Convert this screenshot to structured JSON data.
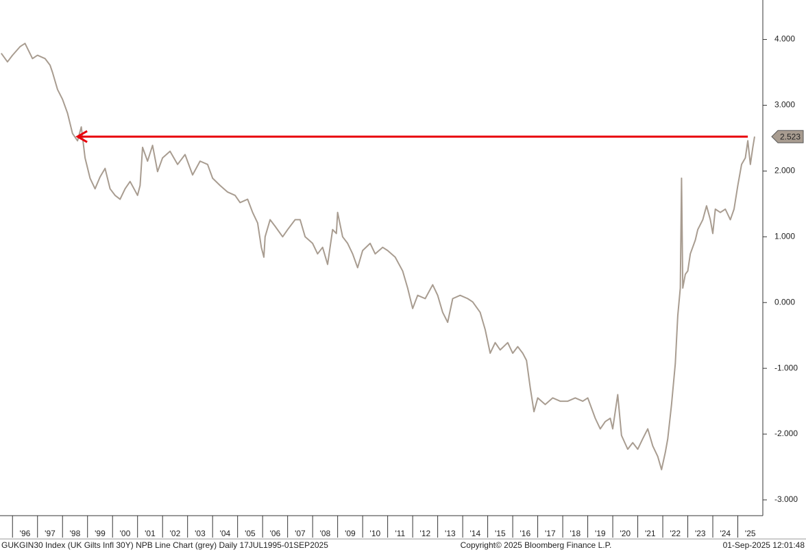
{
  "chart_data": {
    "type": "line",
    "footer_left": "GUKGIN30 Index (UK Gilts Infl 30Y) NPB Line Chart (grey)  Daily 17JUL1995-01SEP2025",
    "footer_center": "Copyright© 2025 Bloomberg Finance L.P.",
    "footer_right": "01-Sep-2025 12:01:48",
    "x": [
      1995.55,
      1995.8,
      1996.0,
      1996.3,
      1996.5,
      1996.8,
      1997.0,
      1997.3,
      1997.5,
      1997.6,
      1997.8,
      1998.0,
      1998.2,
      1998.4,
      1998.6,
      1998.75,
      1998.9,
      1999.1,
      1999.3,
      1999.5,
      1999.7,
      1999.9,
      2000.1,
      2000.3,
      2000.5,
      2000.7,
      2000.9,
      2001.0,
      2001.1,
      2001.2,
      2001.4,
      2001.6,
      2001.8,
      2002.0,
      2002.3,
      2002.6,
      2002.9,
      2003.2,
      2003.5,
      2003.8,
      2004.0,
      2004.3,
      2004.6,
      2004.9,
      2005.1,
      2005.4,
      2005.6,
      2005.8,
      2005.95,
      2006.05,
      2006.1,
      2006.3,
      2006.5,
      2006.8,
      2007.0,
      2007.3,
      2007.5,
      2007.7,
      2008.0,
      2008.2,
      2008.4,
      2008.6,
      2008.8,
      2008.95,
      2009.0,
      2009.2,
      2009.4,
      2009.6,
      2009.8,
      2010.0,
      2010.3,
      2010.5,
      2010.8,
      2011.0,
      2011.3,
      2011.6,
      2011.8,
      2012.0,
      2012.2,
      2012.5,
      2012.8,
      2013.0,
      2013.2,
      2013.4,
      2013.6,
      2013.9,
      2014.2,
      2014.4,
      2014.7,
      2014.9,
      2015.1,
      2015.3,
      2015.5,
      2015.8,
      2016.0,
      2016.2,
      2016.4,
      2016.55,
      2016.7,
      2016.85,
      2017.0,
      2017.3,
      2017.6,
      2017.9,
      2018.2,
      2018.5,
      2018.8,
      2019.0,
      2019.3,
      2019.5,
      2019.7,
      2019.9,
      2020.0,
      2020.2,
      2020.35,
      2020.6,
      2020.8,
      2021.0,
      2021.2,
      2021.4,
      2021.6,
      2021.8,
      2021.95,
      2022.1,
      2022.2,
      2022.35,
      2022.5,
      2022.6,
      2022.7,
      2022.75,
      2022.8,
      2022.9,
      2023.0,
      2023.1,
      2023.3,
      2023.4,
      2023.6,
      2023.75,
      2023.9,
      2024.0,
      2024.1,
      2024.3,
      2024.5,
      2024.7,
      2024.85,
      2025.0,
      2025.15,
      2025.3,
      2025.4,
      2025.5,
      2025.6,
      2025.67
    ],
    "series": [
      {
        "name": "GUKGIN30 Index",
        "color": "#a89c90",
        "values": [
          3.79,
          3.66,
          3.76,
          3.89,
          3.94,
          3.71,
          3.76,
          3.71,
          3.61,
          3.5,
          3.24,
          3.09,
          2.88,
          2.57,
          2.46,
          2.67,
          2.2,
          1.89,
          1.73,
          1.91,
          2.04,
          1.73,
          1.63,
          1.57,
          1.73,
          1.84,
          1.7,
          1.63,
          1.78,
          2.36,
          2.15,
          2.39,
          1.99,
          2.2,
          2.3,
          2.1,
          2.25,
          1.94,
          2.15,
          2.1,
          1.89,
          1.78,
          1.68,
          1.63,
          1.52,
          1.57,
          1.37,
          1.21,
          0.84,
          0.69,
          1.0,
          1.26,
          1.16,
          1.0,
          1.11,
          1.26,
          1.26,
          1.0,
          0.9,
          0.74,
          0.84,
          0.58,
          1.11,
          1.05,
          1.37,
          1.0,
          0.9,
          0.74,
          0.53,
          0.79,
          0.9,
          0.74,
          0.84,
          0.79,
          0.69,
          0.48,
          0.22,
          -0.09,
          0.11,
          0.06,
          0.27,
          0.11,
          -0.15,
          -0.3,
          0.06,
          0.11,
          0.06,
          0.01,
          -0.15,
          -0.41,
          -0.77,
          -0.61,
          -0.72,
          -0.61,
          -0.77,
          -0.67,
          -0.77,
          -0.88,
          -1.29,
          -1.66,
          -1.45,
          -1.55,
          -1.45,
          -1.5,
          -1.5,
          -1.45,
          -1.5,
          -1.45,
          -1.76,
          -1.92,
          -1.81,
          -1.76,
          -1.92,
          -1.4,
          -2.02,
          -2.23,
          -2.13,
          -2.23,
          -2.07,
          -1.92,
          -2.18,
          -2.34,
          -2.54,
          -2.28,
          -2.07,
          -1.55,
          -0.93,
          -0.2,
          0.22,
          1.89,
          0.22,
          0.43,
          0.48,
          0.74,
          0.95,
          1.11,
          1.26,
          1.47,
          1.26,
          1.05,
          1.42,
          1.37,
          1.42,
          1.26,
          1.42,
          1.78,
          2.1,
          2.2,
          2.46,
          2.1,
          2.36,
          2.523
        ]
      }
    ],
    "last_value": 2.523,
    "arrow": {
      "x": [
        2025.4,
        1998.6
      ],
      "color": "#e8000b"
    },
    "xlim": [
      1995.5,
      2026.0
    ],
    "xticks": [
      {
        "value": 1996,
        "label": "'96"
      },
      {
        "value": 1997,
        "label": "'97"
      },
      {
        "value": 1998,
        "label": "'98"
      },
      {
        "value": 1999,
        "label": "'99"
      },
      {
        "value": 2000,
        "label": "'00"
      },
      {
        "value": 2001,
        "label": "'01"
      },
      {
        "value": 2002,
        "label": "'02"
      },
      {
        "value": 2003,
        "label": "'03"
      },
      {
        "value": 2004,
        "label": "'04"
      },
      {
        "value": 2005,
        "label": "'05"
      },
      {
        "value": 2006,
        "label": "'06"
      },
      {
        "value": 2007,
        "label": "'07"
      },
      {
        "value": 2008,
        "label": "'08"
      },
      {
        "value": 2009,
        "label": "'09"
      },
      {
        "value": 2010,
        "label": "'10"
      },
      {
        "value": 2011,
        "label": "'11"
      },
      {
        "value": 2012,
        "label": "'12"
      },
      {
        "value": 2013,
        "label": "'13"
      },
      {
        "value": 2014,
        "label": "'14"
      },
      {
        "value": 2015,
        "label": "'15"
      },
      {
        "value": 2016,
        "label": "'16"
      },
      {
        "value": 2017,
        "label": "'17"
      },
      {
        "value": 2018,
        "label": "'18"
      },
      {
        "value": 2019,
        "label": "'19"
      },
      {
        "value": 2020,
        "label": "'20"
      },
      {
        "value": 2021,
        "label": "'21"
      },
      {
        "value": 2022,
        "label": "'22"
      },
      {
        "value": 2023,
        "label": "'23"
      },
      {
        "value": 2024,
        "label": "'24"
      },
      {
        "value": 2025,
        "label": "'25"
      }
    ],
    "ylim": [
      -3.24,
      4.6
    ],
    "yticks": [
      {
        "value": -3,
        "label": "-3.000"
      },
      {
        "value": -2,
        "label": "-2.000"
      },
      {
        "value": -1,
        "label": "-1.000"
      },
      {
        "value": 0,
        "label": "0.000"
      },
      {
        "value": 1,
        "label": "1.000"
      },
      {
        "value": 2,
        "label": "2.000"
      },
      {
        "value": 3,
        "label": "3.000"
      },
      {
        "value": 4,
        "label": "4.000"
      }
    ],
    "grid": false
  }
}
